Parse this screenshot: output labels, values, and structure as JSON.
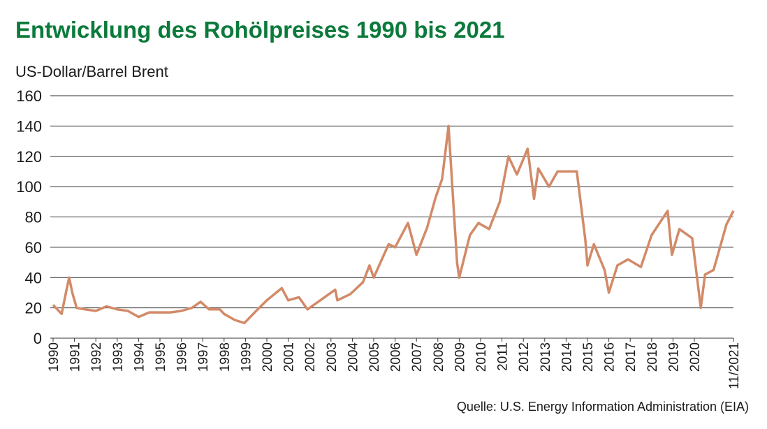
{
  "chart_data": {
    "type": "line",
    "title": "Entwicklung des Rohölpreises 1990 bis 2021",
    "y_label": "US-Dollar/Barrel Brent",
    "source": "Quelle: U.S. Energy Information Administration (EIA)",
    "x": [
      1990.0,
      1990.4,
      1990.6,
      1990.75,
      1990.9,
      1991.1,
      1991.5,
      1992.0,
      1992.5,
      1993.0,
      1993.5,
      1994.0,
      1994.5,
      1995.0,
      1995.5,
      1996.0,
      1996.5,
      1996.9,
      1997.3,
      1997.8,
      1998.0,
      1998.5,
      1998.95,
      1999.5,
      2000.0,
      2000.7,
      2001.0,
      2001.5,
      2001.9,
      2002.5,
      2003.2,
      2003.3,
      2003.9,
      2004.5,
      2004.8,
      2005.0,
      2005.7,
      2006.0,
      2006.6,
      2007.0,
      2007.5,
      2007.9,
      2008.2,
      2008.5,
      2008.9,
      2009.0,
      2009.5,
      2009.9,
      2010.4,
      2010.9,
      2011.3,
      2011.7,
      2012.2,
      2012.5,
      2012.7,
      2013.2,
      2013.6,
      2014.5,
      2014.9,
      2015.0,
      2015.3,
      2015.8,
      2016.0,
      2016.4,
      2016.9,
      2017.5,
      2018.0,
      2018.75,
      2018.95,
      2019.3,
      2019.9,
      2020.3,
      2020.5,
      2020.9,
      2021.3,
      2021.5,
      2021.83
    ],
    "series": [
      {
        "name": "Brent",
        "color": "#d28a68",
        "values": [
          22,
          16,
          30,
          40,
          30,
          20,
          19,
          18,
          21,
          19,
          18,
          14,
          17,
          17,
          17,
          18,
          20,
          24,
          19,
          19,
          16,
          12,
          10,
          18,
          25,
          33,
          25,
          27,
          19,
          25,
          32,
          25,
          29,
          37,
          48,
          40,
          62,
          60,
          76,
          55,
          73,
          93,
          105,
          140,
          50,
          40,
          68,
          76,
          72,
          90,
          120,
          108,
          125,
          92,
          112,
          100,
          110,
          110,
          65,
          48,
          62,
          45,
          30,
          48,
          52,
          47,
          68,
          84,
          55,
          72,
          66,
          20,
          42,
          45,
          65,
          75,
          84
        ]
      }
    ],
    "xlim": [
      1990,
      2021.83
    ],
    "xticks": [
      1990,
      1991,
      1992,
      1993,
      1994,
      1995,
      1996,
      1997,
      1998,
      1999,
      2000,
      2001,
      2002,
      2003,
      2004,
      2005,
      2006,
      2007,
      2008,
      2009,
      2010,
      2011,
      2012,
      2013,
      2014,
      2015,
      2016,
      2017,
      2018,
      2019,
      2020,
      {
        "value": 2021.83,
        "label": "11/2021"
      }
    ],
    "ylim": [
      0,
      160
    ],
    "yticks": [
      0,
      20,
      40,
      60,
      80,
      100,
      120,
      140,
      160
    ],
    "grid": true
  }
}
